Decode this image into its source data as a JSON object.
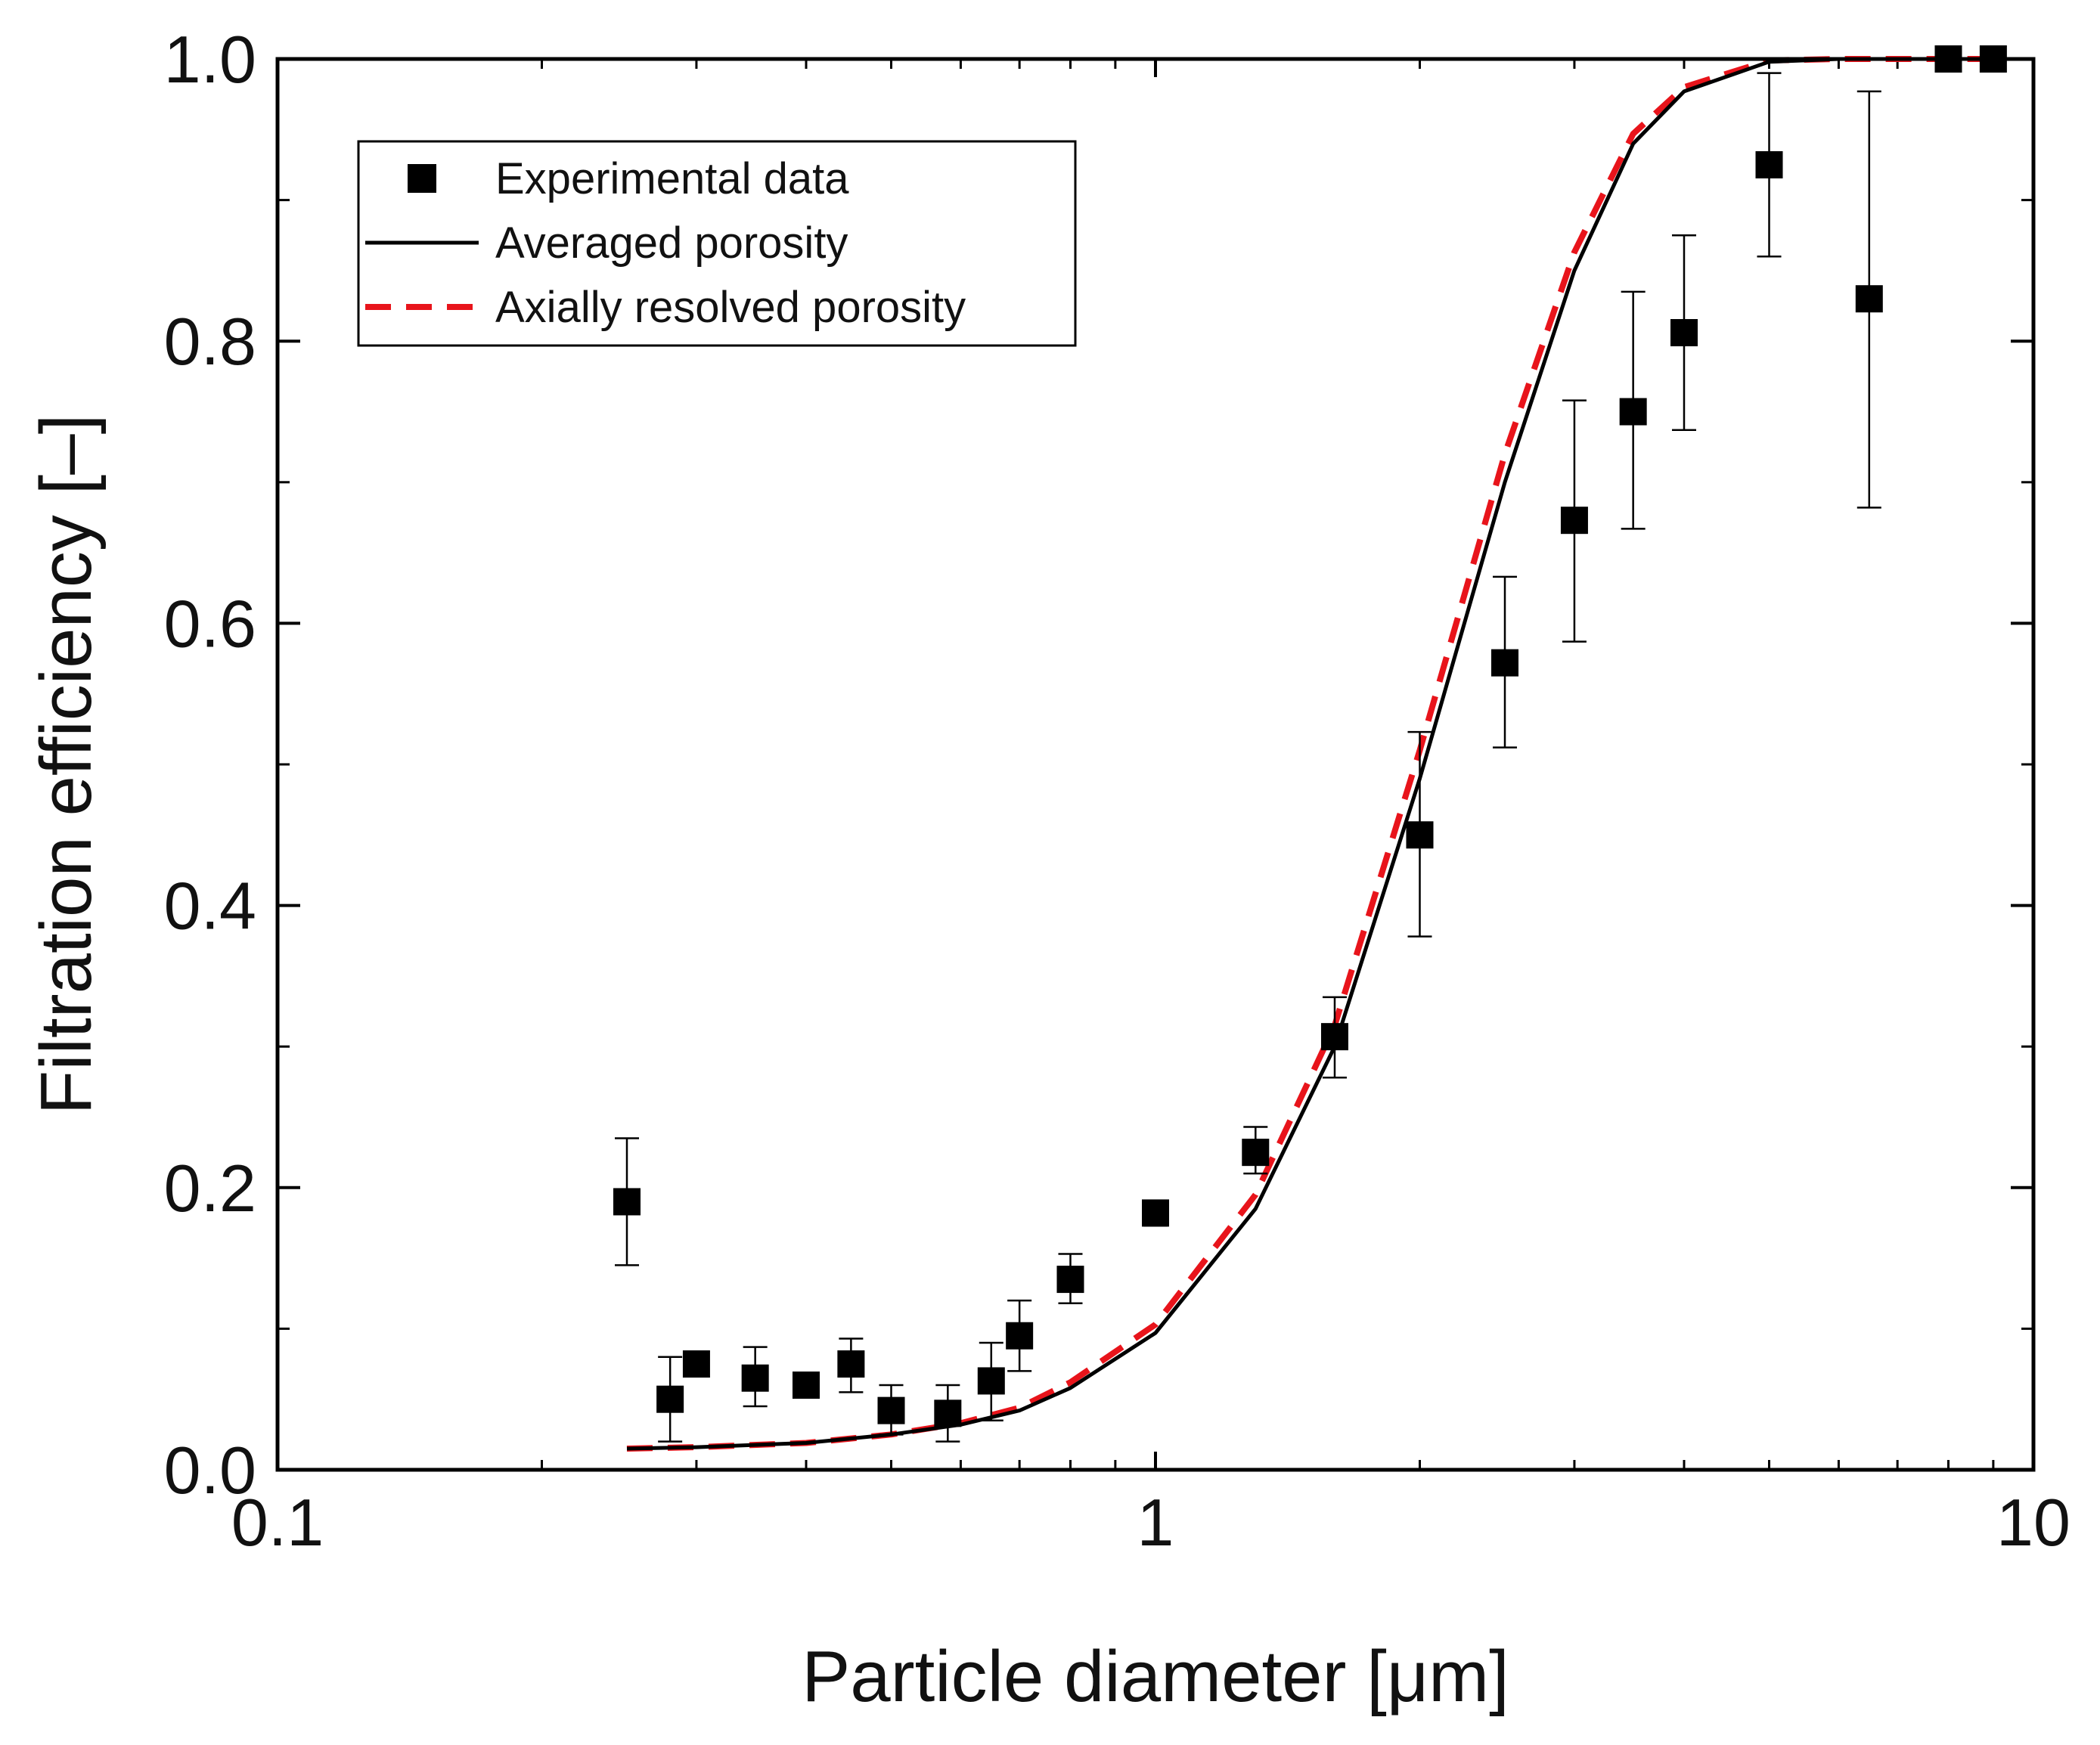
{
  "chart_data": {
    "type": "scatter",
    "title": "",
    "xlabel": "Particle diameter [μm]",
    "ylabel": "Filtration efficiency [–]",
    "xscale": "log",
    "xlim": [
      0.1,
      10
    ],
    "ylim": [
      0.0,
      1.0
    ],
    "grid": false,
    "legend_position": "top-left",
    "x_ticks": [
      {
        "value": 0.1,
        "label": "0.1"
      },
      {
        "value": 1,
        "label": "1"
      },
      {
        "value": 10,
        "label": "10"
      }
    ],
    "x_minor_ticks": [
      0.2,
      0.3,
      0.4,
      0.5,
      0.6,
      0.7,
      0.8,
      0.9,
      2,
      3,
      4,
      5,
      6,
      7,
      8,
      9
    ],
    "y_ticks": [
      {
        "value": 0.0,
        "label": "0.0"
      },
      {
        "value": 0.2,
        "label": "0.2"
      },
      {
        "value": 0.4,
        "label": "0.4"
      },
      {
        "value": 0.6,
        "label": "0.6"
      },
      {
        "value": 0.8,
        "label": "0.8"
      },
      {
        "value": 1.0,
        "label": "1.0"
      }
    ],
    "y_minor_ticks": [
      0.1,
      0.3,
      0.5,
      0.7,
      0.9
    ],
    "series": [
      {
        "name": "Experimental data",
        "kind": "scatter",
        "marker": "square",
        "color": "#000000",
        "x": [
          0.25,
          0.28,
          0.3,
          0.35,
          0.4,
          0.45,
          0.5,
          0.58,
          0.65,
          0.7,
          0.8,
          1.0,
          1.3,
          1.6,
          2.0,
          2.5,
          3.0,
          3.5,
          4.0,
          5.0,
          6.5,
          8.0,
          9.0
        ],
        "y": [
          0.19,
          0.05,
          0.075,
          0.065,
          0.06,
          0.075,
          0.042,
          0.04,
          0.063,
          0.095,
          0.135,
          0.182,
          0.225,
          0.307,
          0.45,
          0.572,
          0.673,
          0.75,
          0.806,
          0.925,
          0.83,
          1.0,
          1.0
        ],
        "y_err_low": [
          0.145,
          0.02,
          0.075,
          0.045,
          0.06,
          0.055,
          0.025,
          0.02,
          0.035,
          0.07,
          0.118,
          0.173,
          0.21,
          0.278,
          0.378,
          0.512,
          0.587,
          0.667,
          0.737,
          0.86,
          0.682,
          1.0,
          1.0
        ],
        "y_err_high": [
          0.235,
          0.08,
          0.075,
          0.087,
          0.06,
          0.093,
          0.06,
          0.06,
          0.09,
          0.12,
          0.153,
          0.19,
          0.243,
          0.335,
          0.523,
          0.633,
          0.758,
          0.835,
          0.875,
          0.99,
          0.977,
          1.0,
          1.0
        ]
      },
      {
        "name": "Averaged porosity",
        "kind": "line",
        "style": "solid",
        "color": "#000000",
        "x": [
          0.25,
          0.3,
          0.4,
          0.5,
          0.6,
          0.7,
          0.8,
          1.0,
          1.3,
          1.6,
          2.0,
          2.5,
          3.0,
          3.5,
          4.0,
          5.0,
          6.0,
          8.0,
          9.0
        ],
        "y": [
          0.015,
          0.016,
          0.019,
          0.025,
          0.032,
          0.042,
          0.058,
          0.097,
          0.185,
          0.3,
          0.49,
          0.7,
          0.85,
          0.94,
          0.977,
          0.998,
          1.0,
          1.0,
          1.0
        ]
      },
      {
        "name": "Axially resolved porosity",
        "kind": "line",
        "style": "dashed",
        "color": "#e8141b",
        "x": [
          0.25,
          0.3,
          0.4,
          0.5,
          0.6,
          0.7,
          0.8,
          1.0,
          1.3,
          1.6,
          2.0,
          2.5,
          3.0,
          3.5,
          4.0,
          5.0,
          6.0,
          8.0,
          9.0
        ],
        "y": [
          0.015,
          0.016,
          0.019,
          0.025,
          0.033,
          0.044,
          0.062,
          0.103,
          0.195,
          0.315,
          0.51,
          0.72,
          0.863,
          0.947,
          0.98,
          0.999,
          1.0,
          1.0,
          1.0
        ]
      }
    ]
  }
}
